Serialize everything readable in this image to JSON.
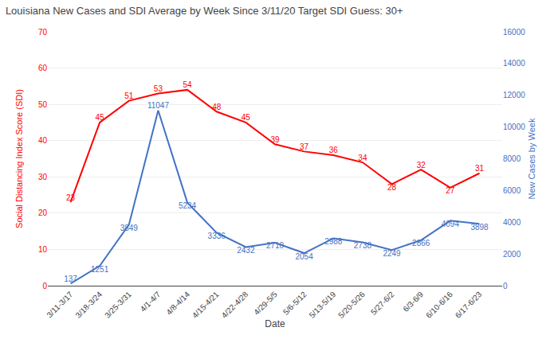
{
  "chart_data": {
    "type": "line",
    "title": "Louisiana New Cases and SDI Average by Week Since 3/11/20 Target SDI Guess: 30+",
    "xlabel": "Date",
    "ylabel": "Social Distancing Index Score (SDI)",
    "y2label": "New Cases by Week",
    "categories": [
      "3/11-3/17",
      "3/18-3/24",
      "3/25-3/31",
      "4/1-4/7",
      "4/8-4/14",
      "4/15-4/21",
      "4/22-4/28",
      "4/29-5/5",
      "5/6-5/12",
      "5/13-5/19",
      "5/20-5/26",
      "5/27-6/2",
      "6/3-6/9",
      "6/10-6/16",
      "6/17-6/23"
    ],
    "series": [
      {
        "color": "#ff0000",
        "values": [
          23,
          45,
          51,
          53,
          54,
          48,
          45,
          39,
          37,
          36,
          34,
          28,
          32,
          27,
          31
        ]
      },
      {
        "color": "#4472c4",
        "axis": "y2",
        "values": [
          137,
          1251,
          3849,
          11047,
          5234,
          3336,
          2432,
          2710,
          2054,
          2988,
          2738,
          2249,
          2866,
          4094,
          3898
        ]
      }
    ],
    "ylim": [
      0,
      70
    ],
    "yticks": [
      0,
      10,
      20,
      30,
      40,
      50,
      60,
      70
    ],
    "y2lim": [
      0,
      16000
    ],
    "y2ticks": [
      0,
      2000,
      4000,
      6000,
      8000,
      10000,
      12000,
      14000,
      16000
    ],
    "grid": true,
    "data_labels": true
  }
}
